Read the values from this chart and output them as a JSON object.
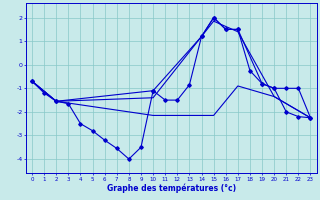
{
  "title": "Graphe des températures (°c)",
  "bg_color": "#c8eaea",
  "line_color": "#0000cd",
  "grid_color": "#88c8c8",
  "xlim": [
    -0.5,
    23.5
  ],
  "ylim": [
    -4.6,
    2.6
  ],
  "yticks": [
    -4,
    -3,
    -2,
    -1,
    0,
    1,
    2
  ],
  "xticks": [
    0,
    1,
    2,
    3,
    4,
    5,
    6,
    7,
    8,
    9,
    10,
    11,
    12,
    13,
    14,
    15,
    16,
    17,
    18,
    19,
    20,
    21,
    22,
    23
  ],
  "line1_x": [
    0,
    1,
    2,
    3,
    4,
    5,
    6,
    7,
    8,
    9,
    10,
    11,
    12,
    13,
    14,
    15,
    16,
    17,
    18,
    19,
    20,
    21,
    22,
    23
  ],
  "line1_y": [
    -0.7,
    -1.2,
    -1.55,
    -1.65,
    -2.5,
    -2.8,
    -3.2,
    -3.55,
    -4.0,
    -3.5,
    -1.1,
    -1.5,
    -1.5,
    -0.85,
    1.2,
    2.0,
    1.5,
    1.5,
    -0.25,
    -0.8,
    -1.0,
    -2.0,
    -2.2,
    -2.25
  ],
  "line2_x": [
    0,
    2,
    10,
    14,
    15,
    16,
    17,
    19,
    20,
    21,
    22,
    23
  ],
  "line2_y": [
    -0.7,
    -1.55,
    -1.1,
    1.2,
    2.0,
    1.5,
    1.5,
    -0.8,
    -1.0,
    -1.0,
    -1.0,
    -2.25
  ],
  "line3_x": [
    0,
    2,
    10,
    15,
    17,
    20,
    23
  ],
  "line3_y": [
    -0.7,
    -1.55,
    -1.4,
    1.85,
    1.4,
    -1.35,
    -2.25
  ],
  "line4_x": [
    0,
    2,
    10,
    15,
    17,
    20,
    23
  ],
  "line4_y": [
    -0.7,
    -1.55,
    -2.15,
    -2.15,
    -0.9,
    -1.35,
    -2.25
  ]
}
